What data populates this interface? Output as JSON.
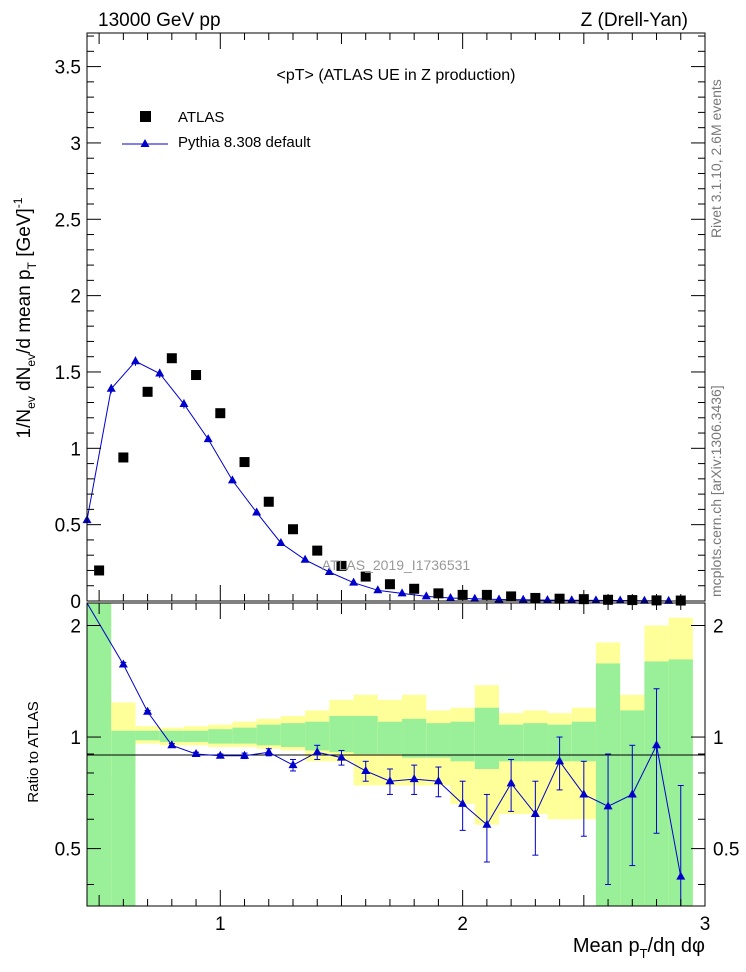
{
  "header": {
    "energy": "13000 GeV pp",
    "process": "Z (Drell-Yan)"
  },
  "side": {
    "rivet": "Rivet 3.1.10,  2.6M events",
    "mcplots": "mcplots.cern.ch [arXiv:1306.3436]"
  },
  "colors": {
    "data": "#000000",
    "mc": "#0000cc",
    "band_inner": "#99f099",
    "band_outer": "#ffff99"
  },
  "chart_data": [
    {
      "type": "scatter",
      "title": "<pT>  (ATLAS UE in Z production)",
      "watermark": "ATLAS_2019_I1736531",
      "ylabel": "1/N_ev dN_ev/d mean p_T [GeV]^-1",
      "ylim": [
        0,
        3.72
      ],
      "xlim": [
        0.45,
        3.0
      ],
      "yticks": [
        "0",
        "0.5",
        "1",
        "1.5",
        "2",
        "2.5",
        "3",
        "3.5"
      ],
      "legend": {
        "position": "top-left",
        "entries": [
          "ATLAS",
          "Pythia 8.308 default"
        ]
      },
      "series": [
        {
          "name": "ATLAS",
          "marker": "square",
          "x": [
            0.5,
            0.6,
            0.7,
            0.8,
            0.9,
            1.0,
            1.1,
            1.2,
            1.3,
            1.4,
            1.5,
            1.6,
            1.7,
            1.8,
            1.9,
            2.0,
            2.1,
            2.2,
            2.3,
            2.4,
            2.5,
            2.6,
            2.7,
            2.8,
            2.9
          ],
          "y": [
            0.2,
            0.94,
            1.37,
            1.59,
            1.48,
            1.23,
            0.91,
            0.65,
            0.47,
            0.33,
            0.23,
            0.16,
            0.11,
            0.08,
            0.05,
            0.04,
            0.04,
            0.03,
            0.02,
            0.015,
            0.012,
            0.008,
            0.006,
            0.004,
            0.003
          ]
        },
        {
          "name": "Pythia 8.308 default",
          "marker": "triangle",
          "x": [
            0.45,
            0.55,
            0.65,
            0.75,
            0.85,
            0.95,
            1.05,
            1.15,
            1.25,
            1.35,
            1.45,
            1.55,
            1.65,
            1.75,
            1.85,
            1.95,
            2.05,
            2.15,
            2.25,
            2.35,
            2.45,
            2.55,
            2.65,
            2.75,
            2.85
          ],
          "y": [
            0.53,
            1.39,
            1.57,
            1.49,
            1.29,
            1.06,
            0.79,
            0.58,
            0.38,
            0.27,
            0.19,
            0.12,
            0.07,
            0.05,
            0.03,
            0.02,
            0.015,
            0.01,
            0.008,
            0.006,
            0.005,
            0.004,
            0.003,
            0.002,
            0.001
          ],
          "yerr": [
            0.01,
            0.03,
            0.03,
            0.03,
            0.03,
            0.02,
            0.01,
            0.01,
            0.01,
            0.01,
            0.01,
            0,
            0,
            0,
            0,
            0,
            0,
            0,
            0,
            0,
            0,
            0,
            0,
            0,
            0
          ]
        }
      ]
    },
    {
      "type": "line",
      "ylabel": "Ratio to ATLAS",
      "xlabel": "Mean p_T/dη dφ",
      "ylim": [
        0.35,
        2.3
      ],
      "yscale": "log",
      "xlim": [
        0.45,
        3.0
      ],
      "xticks": [
        "1",
        "2",
        "3"
      ],
      "yticks": [
        "0.5",
        "1",
        "2"
      ],
      "bands": {
        "edges": [
          0.45,
          0.55,
          0.65,
          0.75,
          0.85,
          0.95,
          1.05,
          1.15,
          1.25,
          1.35,
          1.45,
          1.55,
          1.65,
          1.75,
          1.85,
          1.95,
          2.05,
          2.15,
          2.25,
          2.35,
          2.45,
          2.55,
          2.65,
          2.75,
          2.85,
          2.95
        ],
        "outer_lo": [
          0.35,
          0.78,
          0.96,
          0.95,
          0.95,
          0.94,
          0.94,
          0.93,
          0.92,
          0.86,
          0.86,
          0.74,
          0.74,
          0.74,
          0.74,
          0.66,
          0.58,
          0.62,
          0.62,
          0.6,
          0.6,
          0.35,
          0.35,
          0.35,
          0.35
        ],
        "outer_hi": [
          2.3,
          1.24,
          1.07,
          1.06,
          1.07,
          1.08,
          1.1,
          1.12,
          1.14,
          1.18,
          1.26,
          1.3,
          1.26,
          1.3,
          1.18,
          1.2,
          1.38,
          1.16,
          1.18,
          1.16,
          1.2,
          1.8,
          1.3,
          2.0,
          2.1
        ],
        "inner_lo": [
          0.35,
          0.35,
          0.98,
          0.97,
          0.97,
          0.96,
          0.96,
          0.95,
          0.94,
          0.92,
          0.91,
          0.9,
          0.9,
          0.88,
          0.88,
          0.86,
          0.82,
          0.86,
          0.86,
          0.86,
          0.86,
          0.35,
          0.35,
          0.35,
          0.35
        ],
        "inner_hi": [
          2.3,
          1.04,
          1.04,
          1.04,
          1.04,
          1.05,
          1.06,
          1.08,
          1.09,
          1.1,
          1.14,
          1.14,
          1.1,
          1.12,
          1.09,
          1.1,
          1.2,
          1.08,
          1.09,
          1.08,
          1.1,
          1.58,
          1.18,
          1.6,
          1.62
        ]
      },
      "series": [
        {
          "name": "Pythia 8.308 default",
          "x": [
            0.45,
            0.6,
            0.7,
            0.8,
            0.9,
            1.0,
            1.1,
            1.2,
            1.3,
            1.4,
            1.5,
            1.6,
            1.7,
            1.8,
            1.9,
            2.0,
            2.1,
            2.2,
            2.3,
            2.4,
            2.5,
            2.6,
            2.7,
            2.8,
            2.9
          ],
          "y": [
            2.5,
            1.57,
            1.17,
            0.95,
            0.9,
            0.89,
            0.89,
            0.91,
            0.84,
            0.91,
            0.88,
            0.81,
            0.76,
            0.77,
            0.76,
            0.66,
            0.58,
            0.75,
            0.62,
            0.86,
            0.7,
            0.65,
            0.7,
            0.95,
            0.42
          ],
          "yerr": [
            0,
            0.02,
            0.01,
            0.01,
            0.01,
            0.01,
            0.015,
            0.02,
            0.03,
            0.04,
            0.04,
            0.05,
            0.06,
            0.07,
            0.07,
            0.1,
            0.12,
            0.12,
            0.14,
            0.14,
            0.16,
            0.25,
            0.25,
            0.4,
            0.32
          ]
        }
      ]
    }
  ]
}
